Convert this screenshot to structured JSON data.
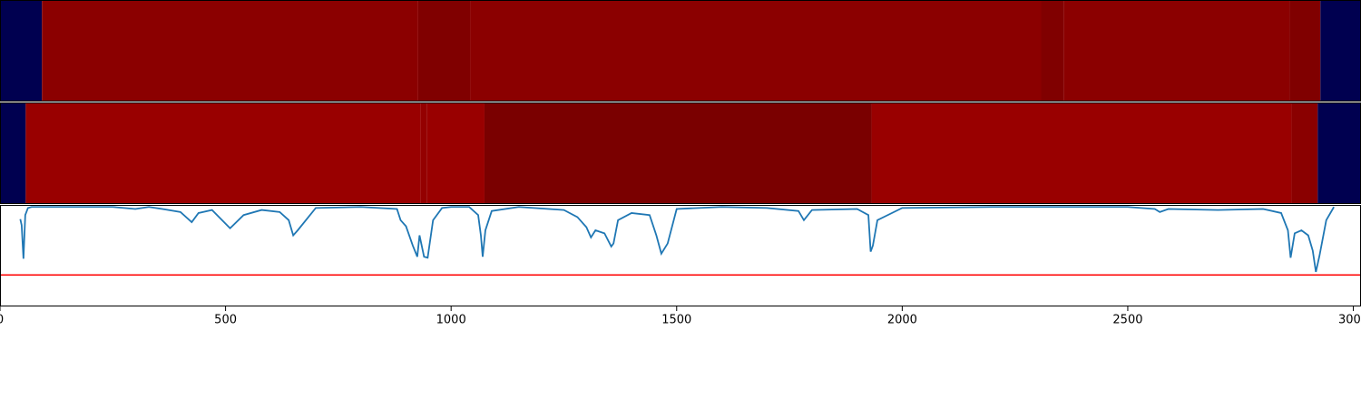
{
  "chart_data": [
    {
      "type": "strip",
      "xlim": [
        0,
        3017
      ],
      "edges": [
        0,
        93,
        927,
        1042,
        2308,
        2358,
        2859,
        2927,
        3017
      ],
      "colors": [
        "#000050",
        "#8b0000",
        "#800000",
        "#8b0000",
        "#800000",
        "#8b0000",
        "#800000",
        "#000050"
      ]
    },
    {
      "type": "strip",
      "xlim": [
        0,
        3017
      ],
      "edges": [
        0,
        57,
        933,
        947,
        1074,
        1932,
        2863,
        2921,
        3017
      ],
      "colors": [
        "#000050",
        "#990000",
        "#940000",
        "#990000",
        "#7a0000",
        "#990000",
        "#8a0000",
        "#000050"
      ]
    },
    {
      "type": "line",
      "xlim": [
        0,
        3017
      ],
      "ylim": [
        0,
        1
      ],
      "xticks": [
        0,
        500,
        1000,
        1500,
        2000,
        2500,
        3000
      ],
      "threshold": 0.31,
      "threshold_color": "#ff0000",
      "series": [
        {
          "color": "#1f77b4",
          "x": [
            45,
            48,
            52,
            56,
            62,
            70,
            90,
            150,
            250,
            300,
            330,
            360,
            400,
            425,
            440,
            470,
            510,
            540,
            580,
            620,
            640,
            650,
            660,
            700,
            800,
            880,
            888,
            900,
            915,
            925,
            930,
            940,
            948,
            960,
            980,
            1000,
            1040,
            1060,
            1066,
            1070,
            1076,
            1090,
            1150,
            1250,
            1280,
            1300,
            1310,
            1320,
            1340,
            1355,
            1360,
            1370,
            1400,
            1440,
            1455,
            1466,
            1480,
            1500,
            1600,
            1700,
            1770,
            1782,
            1800,
            1900,
            1925,
            1930,
            1935,
            1945,
            2000,
            2200,
            2500,
            2560,
            2571,
            2590,
            2700,
            2800,
            2840,
            2855,
            2861,
            2870,
            2885,
            2900,
            2910,
            2917,
            2925,
            2940,
            2957
          ],
          "values": [
            0.86,
            0.8,
            0.47,
            0.9,
            0.97,
            0.98,
            0.98,
            0.98,
            0.98,
            0.96,
            0.98,
            0.96,
            0.93,
            0.83,
            0.92,
            0.95,
            0.77,
            0.9,
            0.95,
            0.93,
            0.85,
            0.7,
            0.75,
            0.97,
            0.98,
            0.96,
            0.85,
            0.79,
            0.6,
            0.49,
            0.7,
            0.49,
            0.48,
            0.85,
            0.97,
            0.98,
            0.98,
            0.9,
            0.7,
            0.49,
            0.75,
            0.94,
            0.98,
            0.95,
            0.88,
            0.78,
            0.68,
            0.75,
            0.72,
            0.59,
            0.62,
            0.85,
            0.92,
            0.9,
            0.7,
            0.52,
            0.62,
            0.96,
            0.98,
            0.97,
            0.94,
            0.85,
            0.95,
            0.96,
            0.9,
            0.54,
            0.6,
            0.85,
            0.97,
            0.98,
            0.98,
            0.96,
            0.93,
            0.96,
            0.95,
            0.96,
            0.92,
            0.75,
            0.48,
            0.72,
            0.75,
            0.7,
            0.55,
            0.34,
            0.5,
            0.85,
            0.98
          ]
        }
      ]
    }
  ]
}
